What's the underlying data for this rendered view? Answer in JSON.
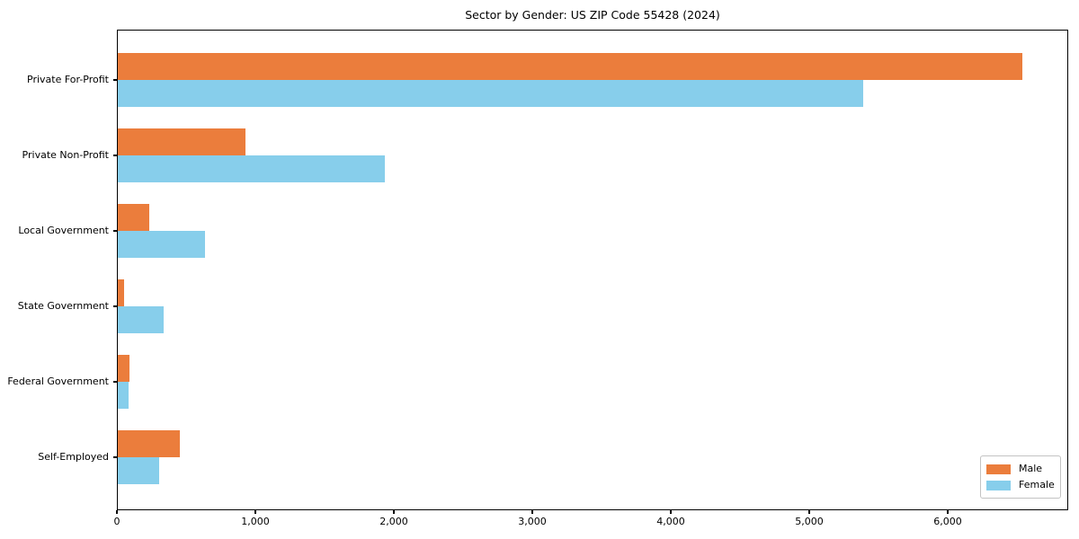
{
  "chart_data": {
    "type": "bar",
    "orientation": "horizontal",
    "title": "Sector by Gender: US ZIP Code 55428 (2024)",
    "xlabel": "",
    "ylabel": "",
    "categories": [
      "Private For-Profit",
      "Private Non-Profit",
      "Local Government",
      "State Government",
      "Federal Government",
      "Self-Employed"
    ],
    "series": [
      {
        "name": "Male",
        "color": "#eb7d3c",
        "values": [
          6530,
          920,
          230,
          45,
          85,
          450
        ]
      },
      {
        "name": "Female",
        "color": "#87ceeb",
        "values": [
          5380,
          1930,
          630,
          330,
          80,
          300
        ]
      }
    ],
    "xlim": [
      0,
      6870
    ],
    "xticks": [
      0,
      1000,
      2000,
      3000,
      4000,
      5000,
      6000
    ],
    "xtick_labels": [
      "0",
      "1,000",
      "2,000",
      "3,000",
      "4,000",
      "5,000",
      "6,000"
    ],
    "grid": false,
    "legend_position": "lower right",
    "spine_color": "#000000",
    "background_color": "#ffffff"
  }
}
